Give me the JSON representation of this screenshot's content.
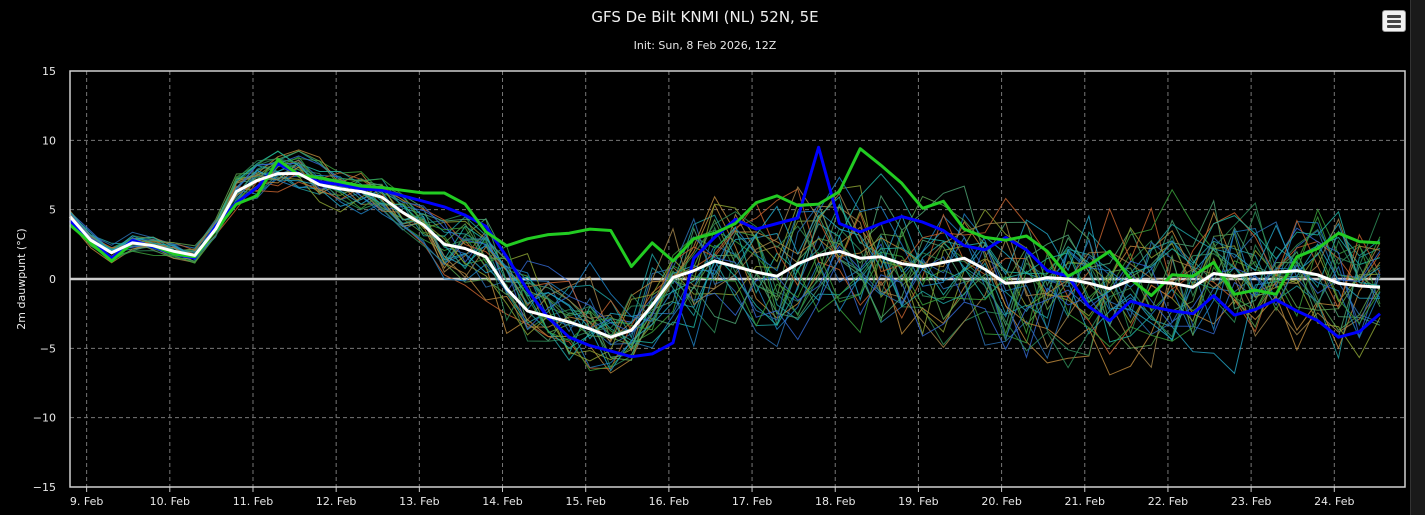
{
  "header": {
    "title": "GFS De Bilt KNMI (NL) 52N, 5E",
    "subtitle": "Init: Sun, 8 Feb 2026, 12Z",
    "menu_icon": "hamburger-menu-icon"
  },
  "chart_data": {
    "type": "line",
    "title": "GFS De Bilt KNMI (NL) 52N, 5E",
    "subtitle": "Init: Sun, 8 Feb 2026, 12Z",
    "ylabel": "2m dauwpunt (°C)",
    "xlabel": "",
    "ylim": [
      -15,
      15
    ],
    "yticks": [
      15,
      10,
      5,
      0,
      -5,
      -10,
      -15
    ],
    "xlim": [
      8.8,
      24.85
    ],
    "xticks": [
      {
        "x": 9,
        "label": "9. Feb"
      },
      {
        "x": 10,
        "label": "10. Feb"
      },
      {
        "x": 11,
        "label": "11. Feb"
      },
      {
        "x": 12,
        "label": "12. Feb"
      },
      {
        "x": 13,
        "label": "13. Feb"
      },
      {
        "x": 14,
        "label": "14. Feb"
      },
      {
        "x": 15,
        "label": "15. Feb"
      },
      {
        "x": 16,
        "label": "16. Feb"
      },
      {
        "x": 17,
        "label": "17. Feb"
      },
      {
        "x": 18,
        "label": "18. Feb"
      },
      {
        "x": 19,
        "label": "19. Feb"
      },
      {
        "x": 20,
        "label": "20. Feb"
      },
      {
        "x": 21,
        "label": "21. Feb"
      },
      {
        "x": 22,
        "label": "22. Feb"
      },
      {
        "x": 23,
        "label": "23. Feb"
      },
      {
        "x": 24,
        "label": "24. Feb"
      }
    ],
    "x_start": 8.8,
    "x_step": 0.25,
    "grid": true,
    "legend": "none",
    "highlight_series": [
      {
        "color": "#0000ff",
        "width": 3,
        "values": [
          4.2,
          2.8,
          1.5,
          2.8,
          2.3,
          1.8,
          1.5,
          3.8,
          5.5,
          6.6,
          8.3,
          7.6,
          7.0,
          6.8,
          6.5,
          6.4,
          6.0,
          5.6,
          5.2,
          4.6,
          3.8,
          1.6,
          -0.8,
          -2.8,
          -4.2,
          -4.8,
          -5.2,
          -5.6,
          -5.4,
          -4.6,
          1.5,
          3.0,
          4.3,
          3.6,
          4.0,
          4.4,
          9.5,
          4.0,
          3.4,
          4.0,
          4.5,
          4.1,
          3.5,
          2.4,
          2.1,
          3.0,
          2.1,
          0.6,
          0.2,
          -2.0,
          -3.0,
          -1.6,
          -2.0,
          -2.3,
          -2.5,
          -1.2,
          -2.6,
          -2.2,
          -1.5,
          -2.3,
          -3.0,
          -4.2,
          -3.8,
          -2.5
        ]
      },
      {
        "color": "#22cc22",
        "width": 3,
        "values": [
          3.9,
          2.6,
          1.3,
          2.6,
          2.4,
          1.8,
          1.6,
          3.5,
          5.4,
          6.0,
          8.6,
          7.5,
          7.3,
          7.0,
          6.7,
          6.6,
          6.4,
          6.2,
          6.2,
          5.4,
          3.4,
          2.4,
          2.9,
          3.2,
          3.3,
          3.6,
          3.5,
          0.9,
          2.6,
          1.3,
          2.9,
          3.3,
          4.0,
          5.5,
          6.0,
          5.3,
          5.4,
          6.3,
          9.4,
          8.2,
          6.9,
          5.1,
          5.6,
          3.6,
          3.0,
          2.8,
          3.1,
          2.0,
          0.2,
          1.0,
          2.0,
          0.0,
          -1.2,
          0.3,
          0.2,
          1.2,
          -1.1,
          -0.8,
          -1.1,
          1.6,
          2.2,
          3.3,
          2.7,
          2.6
        ]
      },
      {
        "color": "#ffffff",
        "width": 3,
        "values": [
          4.5,
          2.8,
          1.9,
          2.6,
          2.4,
          2.0,
          1.7,
          3.6,
          6.3,
          7.1,
          7.6,
          7.6,
          6.8,
          6.5,
          6.3,
          5.9,
          4.8,
          3.9,
          2.5,
          2.2,
          1.6,
          -0.7,
          -2.3,
          -2.7,
          -3.1,
          -3.6,
          -4.2,
          -3.7,
          -1.9,
          0.1,
          0.6,
          1.3,
          0.9,
          0.5,
          0.2,
          1.1,
          1.7,
          2.0,
          1.5,
          1.6,
          1.1,
          0.9,
          1.2,
          1.5,
          0.7,
          -0.3,
          -0.2,
          0.1,
          0.0,
          -0.3,
          -0.7,
          -0.1,
          -0.2,
          -0.3,
          -0.6,
          0.4,
          0.2,
          0.4,
          0.5,
          0.6,
          0.3,
          -0.3,
          -0.5,
          -0.6
        ]
      }
    ]
  }
}
